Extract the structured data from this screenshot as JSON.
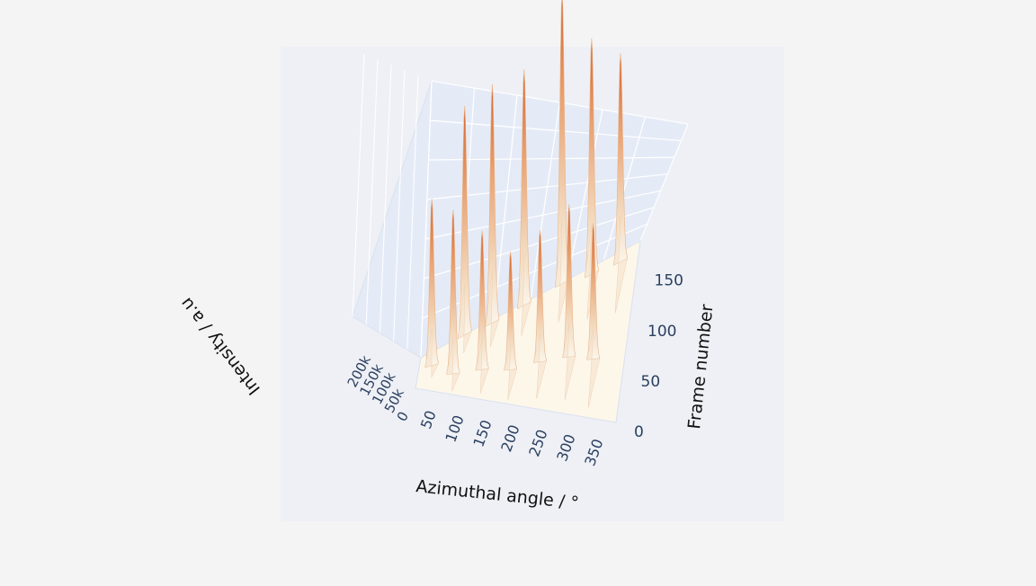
{
  "chart_data": {
    "type": "surface3d",
    "title": "",
    "xlabel": "Azimuthal angle / °",
    "ylabel": "Frame number",
    "zlabel": "Intensity / a.u",
    "xlim": [
      0,
      360
    ],
    "ylim": [
      0,
      180
    ],
    "zlim": [
      0,
      220000
    ],
    "x_ticks": [
      "50",
      "100",
      "150",
      "200",
      "250",
      "300",
      "350"
    ],
    "y_ticks": [
      "0",
      "50",
      "100",
      "150"
    ],
    "z_ticks": [
      "0",
      "50k",
      "100k",
      "150k",
      "200k"
    ],
    "grid": true,
    "colorscale": [
      "#fbf6ec",
      "#f3d9bd",
      "#e8a070",
      "#d4622a"
    ],
    "peaks": [
      {
        "x": 22,
        "y": 112,
        "intensity": 120000
      },
      {
        "x": 72,
        "y": 178,
        "intensity": 165000
      },
      {
        "x": 118,
        "y": 172,
        "intensity": 172000
      },
      {
        "x": 170,
        "y": 175,
        "intensity": 170000
      },
      {
        "x": 232,
        "y": 178,
        "intensity": 210000
      },
      {
        "x": 282,
        "y": 170,
        "intensity": 170000
      },
      {
        "x": 330,
        "y": 168,
        "intensity": 150000
      },
      {
        "x": 62,
        "y": 65,
        "intensity": 118000
      },
      {
        "x": 112,
        "y": 68,
        "intensity": 100000
      },
      {
        "x": 162,
        "y": 62,
        "intensity": 85000
      },
      {
        "x": 212,
        "y": 70,
        "intensity": 95000
      },
      {
        "x": 262,
        "y": 72,
        "intensity": 110000
      },
      {
        "x": 305,
        "y": 66,
        "intensity": 98000
      }
    ]
  }
}
